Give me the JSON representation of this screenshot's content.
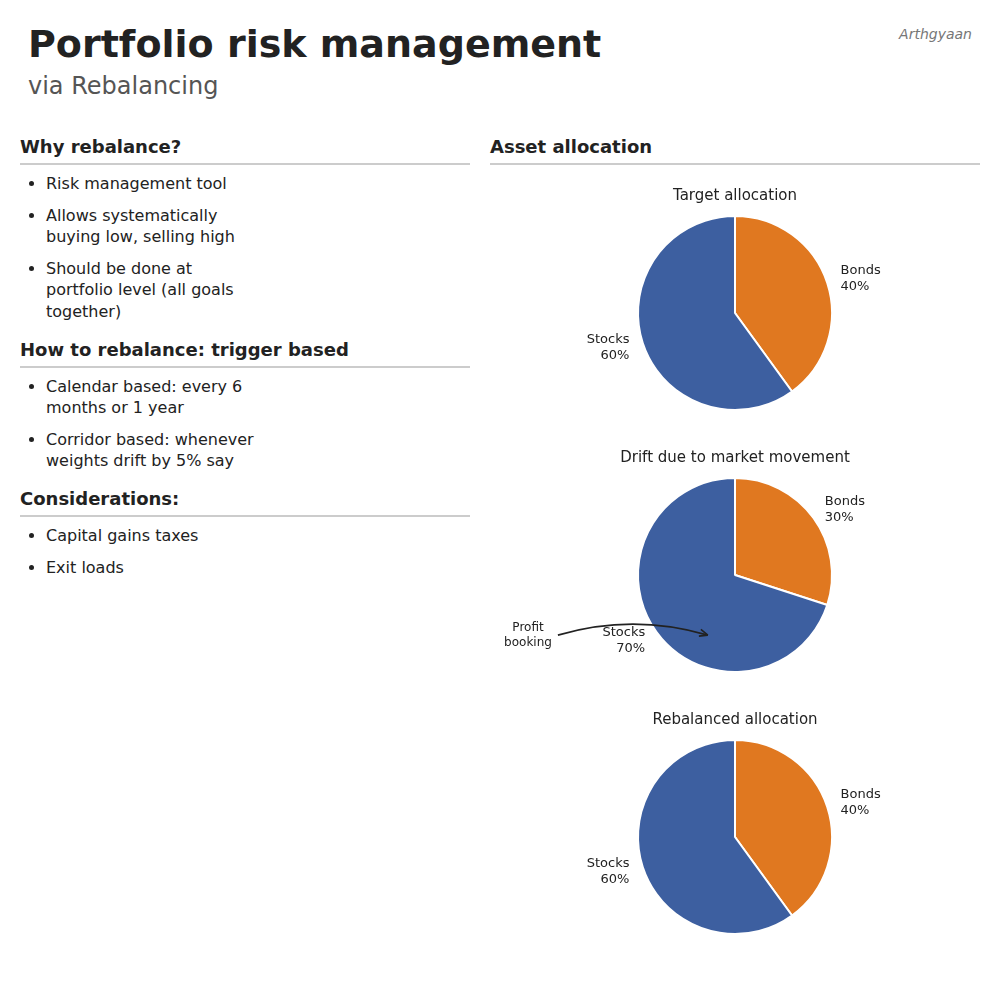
{
  "title": "Portfolio risk management",
  "subtitle": "via Rebalancing",
  "annotations": [
    "Arthgyaan"
  ],
  "sections": [
    {
      "header": "Why rebalance?",
      "items": [
        "Risk management tool",
        "Allows systematically\nbuying low, selling high",
        "Should be done at\nportfolio level (all goals\ntogether)"
      ]
    },
    {
      "header": "How to rebalance: trigger based",
      "items": [
        "Calendar based: every 6\nmonths or 1 year",
        "Corridor based: whenever\nweights drift by 5% say"
      ]
    },
    {
      "header": "Considerations:",
      "items": [
        "Capital gains taxes",
        "Exit loads"
      ]
    }
  ],
  "charts_header": "Asset allocation",
  "chart_data": [
    {
      "type": "pie",
      "title": "Target allocation",
      "categories": [
        "Bonds",
        "Stocks"
      ],
      "values": [
        40,
        60
      ],
      "value_labels": [
        "40%",
        "60%"
      ],
      "colors": [
        "#e07820",
        "#3d5fa0"
      ],
      "data_labels": true
    },
    {
      "type": "pie",
      "title": "Drift due to market movement",
      "categories": [
        "Bonds",
        "Stocks"
      ],
      "values": [
        30,
        70
      ],
      "value_labels": [
        "30%",
        "70%"
      ],
      "colors": [
        "#e07820",
        "#3d5fa0"
      ],
      "data_labels": true,
      "annotations": [
        "Profit\nbooking"
      ]
    },
    {
      "type": "pie",
      "title": "Rebalanced allocation",
      "categories": [
        "Bonds",
        "Stocks"
      ],
      "values": [
        40,
        60
      ],
      "value_labels": [
        "40%",
        "60%"
      ],
      "colors": [
        "#e07820",
        "#3d5fa0"
      ],
      "data_labels": true
    }
  ]
}
